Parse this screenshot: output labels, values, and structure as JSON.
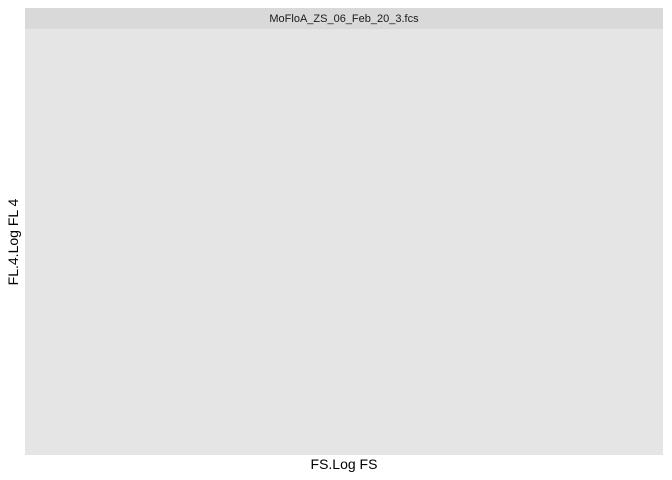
{
  "chart_data": {
    "type": "scatter",
    "facet_title": "MoFloA_ZS_06_Feb_20_3.fcs",
    "xlabel": "FS.Log FS",
    "ylabel": "FL.4.Log FL 4",
    "series": [],
    "grid": false
  },
  "colors": {
    "panel_background": "#e5e5e5",
    "strip_background": "#d9d9d9"
  }
}
